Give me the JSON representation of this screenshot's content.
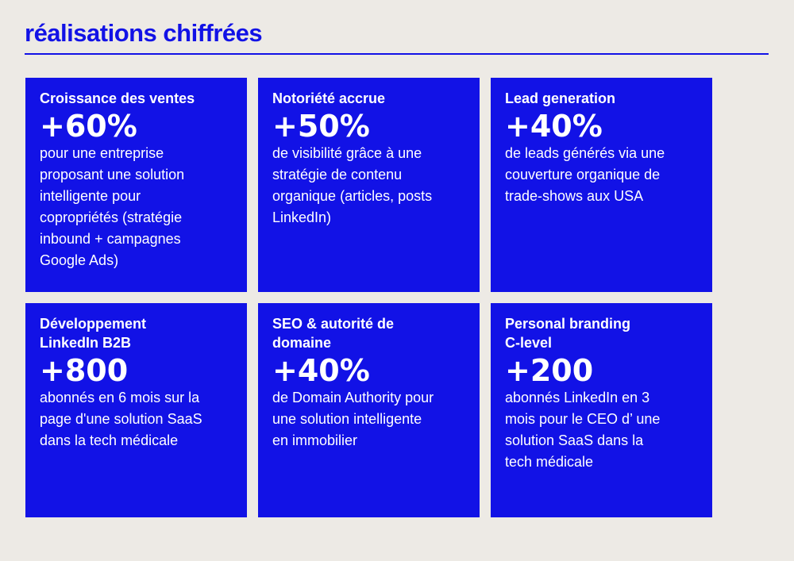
{
  "page": {
    "title": "réalisations chiffrées",
    "accent_color": "#1212e6",
    "background_color": "#edeae5"
  },
  "cards": [
    {
      "title": "Croissance des ventes",
      "value": "+60%",
      "description": "pour une entreprise\nproposant une solution\nintelligente pour\ncopropriétés (stratégie\ninbound + campagnes\nGoogle Ads)"
    },
    {
      "title": "Notoriété accrue",
      "value": "+50%",
      "description": "de visibilité grâce à une\nstratégie de contenu\norganique (articles, posts\nLinkedIn)"
    },
    {
      "title": "Lead generation",
      "value": "+40%",
      "description": "de leads générés via une\ncouverture organique de\ntrade-shows aux USA"
    },
    {
      "title": "Développement\nLinkedIn B2B",
      "value": "+800",
      "description": "abonnés en 6 mois sur la\npage d'une solution SaaS\ndans la tech médicale"
    },
    {
      "title": "SEO & autorité de\ndomaine",
      "value": "+40%",
      "description": "de Domain Authority pour\nune solution intelligente\nen immobilier"
    },
    {
      "title": "Personal branding\nC-level",
      "value": "+200",
      "description": "abonnés LinkedIn en 3\nmois pour le CEO d’ une\nsolution SaaS dans la\ntech médicale"
    }
  ]
}
